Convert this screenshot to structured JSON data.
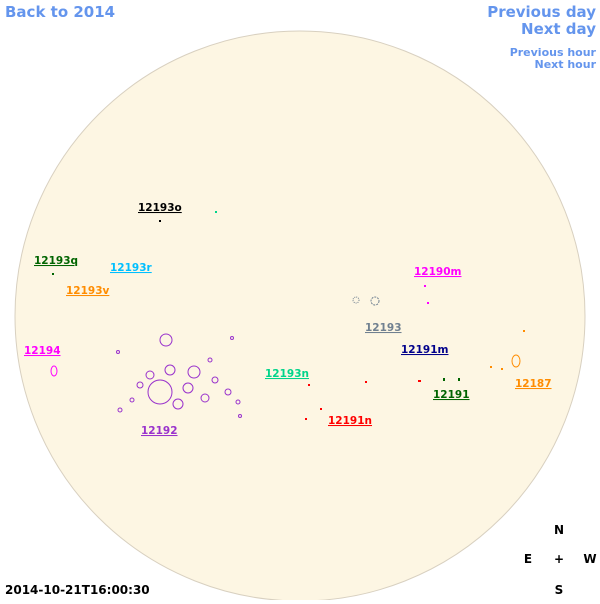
{
  "nav": {
    "back": "Back to 2014",
    "previous_day": "Previous day",
    "next_day": "Next day",
    "previous_hour": "Previous hour",
    "next_hour": "Next hour"
  },
  "regions": [
    {
      "label": "12193o",
      "color": "#000000"
    },
    {
      "label": "12193q",
      "color": "#006400"
    },
    {
      "label": "12193r",
      "color": "#00bfff"
    },
    {
      "label": "12193v",
      "color": "#ff8c00"
    },
    {
      "label": "12194",
      "color": "#ff00ff"
    },
    {
      "label": "12190m",
      "color": "#ff00ff"
    },
    {
      "label": "12193",
      "color": "#708090"
    },
    {
      "label": "12191m",
      "color": "#00008b"
    },
    {
      "label": "12193n",
      "color": "#00d48a"
    },
    {
      "label": "12187",
      "color": "#ff8c00"
    },
    {
      "label": "12191",
      "color": "#006400"
    },
    {
      "label": "12192",
      "color": "#9932cc"
    },
    {
      "label": "12191n",
      "color": "#ff0000"
    }
  ],
  "compass": {
    "north": "N",
    "east": "E",
    "center": "+",
    "west": "W",
    "south": "S"
  },
  "timestamp": "2014-10-21T16:00:30"
}
